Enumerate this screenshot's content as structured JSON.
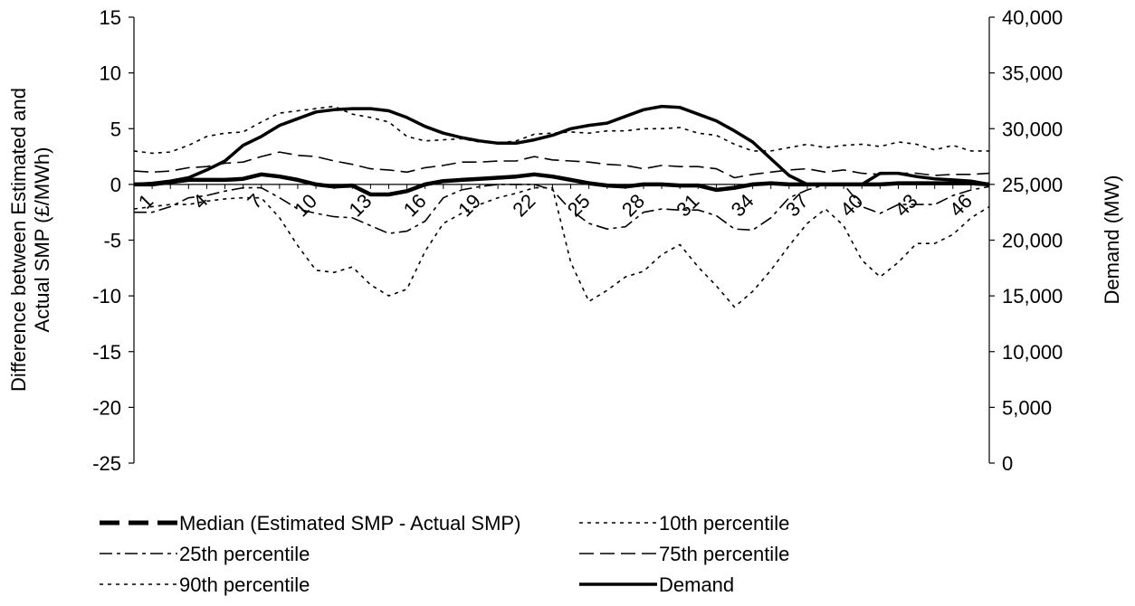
{
  "chart_data": {
    "type": "line",
    "title": "",
    "ylabel": "Difference between Estimated and Actual SMP (£/MWh)",
    "y2label": "Demand (MW)",
    "xlabel": "",
    "ylim": [
      -25,
      15
    ],
    "y2lim": [
      0,
      40000
    ],
    "yticks": [
      "15",
      "10",
      "5",
      "0",
      "-5",
      "-10",
      "-15",
      "-20",
      "-25"
    ],
    "y2ticks": [
      "40,000",
      "35,000",
      "30,000",
      "25,000",
      "20,000",
      "15,000",
      "10,000",
      "5,000",
      "0"
    ],
    "xticks": [
      "1",
      "4",
      "7",
      "10",
      "13",
      "16",
      "19",
      "22",
      "25",
      "28",
      "31",
      "34",
      "37",
      "40",
      "43",
      "46"
    ],
    "x": [
      1,
      2,
      3,
      4,
      5,
      6,
      7,
      8,
      9,
      10,
      11,
      12,
      13,
      14,
      15,
      16,
      17,
      18,
      19,
      20,
      21,
      22,
      23,
      24,
      25,
      26,
      27,
      28,
      29,
      30,
      31,
      32,
      33,
      34,
      35,
      36,
      37,
      38,
      39,
      40,
      41,
      42,
      43,
      44,
      45,
      46,
      47,
      48
    ],
    "series": [
      {
        "name": "Median (Estimated SMP - Actual SMP)",
        "axis": "left",
        "style": "median",
        "values": [
          0.0,
          0.0,
          0.2,
          0.4,
          0.4,
          0.4,
          0.5,
          0.9,
          0.7,
          0.4,
          0.0,
          -0.2,
          -0.1,
          -0.9,
          -0.9,
          -0.6,
          0.0,
          0.3,
          0.4,
          0.5,
          0.6,
          0.7,
          0.9,
          0.7,
          0.4,
          0.1,
          -0.1,
          -0.2,
          0.0,
          0.0,
          -0.1,
          -0.1,
          -0.5,
          -0.3,
          0.0,
          0.1,
          0.0,
          0.0,
          0.0,
          0.0,
          0.0,
          0.0,
          0.1,
          0.1,
          0.1,
          0.1,
          0.1,
          0.0
        ]
      },
      {
        "name": "10th percentile",
        "axis": "left",
        "style": "p10",
        "values": [
          -2.2,
          -2.0,
          -1.8,
          -1.8,
          -1.5,
          -1.3,
          -1.2,
          -1.2,
          -3.0,
          -5.5,
          -7.7,
          -7.9,
          -7.4,
          -9.0,
          -10.0,
          -9.4,
          -6.0,
          -3.5,
          -2.6,
          -1.8,
          -1.2,
          -0.8,
          -0.3,
          -0.3,
          -7.0,
          -10.5,
          -9.5,
          -8.3,
          -7.8,
          -6.3,
          -5.4,
          -7.4,
          -9.1,
          -11.0,
          -9.6,
          -7.7,
          -5.5,
          -3.5,
          -2.2,
          -3.7,
          -6.8,
          -8.3,
          -7.0,
          -5.3,
          -5.3,
          -4.5,
          -3.0,
          -2.0
        ]
      },
      {
        "name": "25th percentile",
        "axis": "left",
        "style": "p25",
        "values": [
          -2.5,
          -2.5,
          -2.0,
          -1.2,
          -1.0,
          -0.6,
          -0.3,
          -0.3,
          -1.2,
          -2.2,
          -2.6,
          -2.9,
          -3.0,
          -3.7,
          -4.4,
          -4.2,
          -3.3,
          -1.2,
          -0.5,
          -0.2,
          0.0,
          0.0,
          0.0,
          -0.5,
          -2.3,
          -3.5,
          -4.0,
          -3.8,
          -2.5,
          -2.2,
          -2.3,
          -2.3,
          -2.8,
          -4.0,
          -4.1,
          -3.0,
          -1.2,
          -0.5,
          0.0,
          0.0,
          -2.0,
          -2.6,
          -1.8,
          -1.8,
          -1.8,
          -1.0,
          -0.5,
          -0.2
        ]
      },
      {
        "name": "75th percentile",
        "axis": "left",
        "style": "p75",
        "values": [
          1.2,
          1.1,
          1.2,
          1.5,
          1.6,
          1.9,
          2.0,
          2.5,
          2.9,
          2.6,
          2.5,
          2.1,
          1.8,
          1.4,
          1.3,
          1.1,
          1.5,
          1.7,
          2.0,
          2.0,
          2.1,
          2.1,
          2.5,
          2.2,
          2.1,
          2.0,
          1.8,
          1.7,
          1.4,
          1.7,
          1.6,
          1.6,
          1.4,
          0.6,
          0.9,
          1.1,
          1.3,
          1.4,
          1.1,
          1.3,
          1.0,
          0.9,
          1.0,
          1.0,
          0.8,
          0.9,
          0.9,
          1.0
        ]
      },
      {
        "name": "90th percentile",
        "axis": "left",
        "style": "p90",
        "values": [
          3.0,
          2.8,
          2.9,
          3.5,
          4.3,
          4.6,
          4.7,
          5.6,
          6.4,
          6.6,
          6.8,
          7.0,
          6.3,
          6.0,
          5.6,
          4.3,
          3.9,
          4.0,
          4.1,
          3.8,
          3.7,
          3.9,
          4.5,
          4.6,
          4.7,
          4.6,
          4.8,
          4.8,
          5.0,
          5.0,
          5.1,
          4.6,
          4.4,
          3.6,
          3.0,
          3.0,
          3.3,
          3.6,
          3.3,
          3.5,
          3.6,
          3.4,
          3.8,
          3.6,
          3.1,
          3.5,
          3.0,
          3.0
        ]
      },
      {
        "name": "Demand",
        "axis": "right",
        "style": "demand",
        "values": [
          25000,
          25100,
          25300,
          25600,
          26300,
          27100,
          28500,
          29300,
          30300,
          30900,
          31500,
          31700,
          31800,
          31800,
          31600,
          31000,
          30200,
          29600,
          29200,
          28900,
          28700,
          28700,
          29000,
          29400,
          30000,
          30300,
          30500,
          31100,
          31700,
          32000,
          31900,
          31300,
          30700,
          29800,
          28800,
          27300,
          25800,
          25000,
          25000,
          25000,
          25000,
          26000,
          26000,
          25700,
          25500,
          25400,
          25300,
          25000
        ]
      }
    ]
  },
  "legend": {
    "items": [
      {
        "label": "Median (Estimated SMP - Actual SMP)",
        "style": "median"
      },
      {
        "label": "10th percentile",
        "style": "p10"
      },
      {
        "label": "25th percentile",
        "style": "p25"
      },
      {
        "label": "75th percentile",
        "style": "p75"
      },
      {
        "label": "90th percentile",
        "style": "p90"
      },
      {
        "label": "Demand",
        "style": "demand"
      }
    ]
  }
}
